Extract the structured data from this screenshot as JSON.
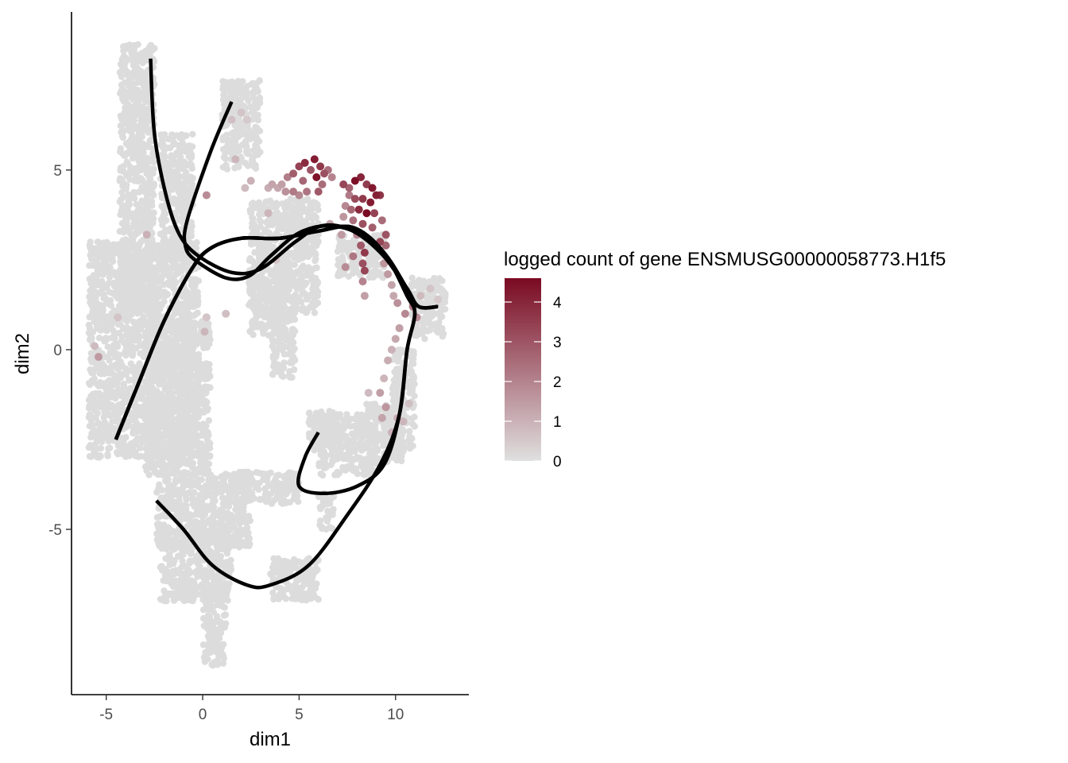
{
  "chart_data": {
    "type": "scatter",
    "xlabel": "dim1",
    "ylabel": "dim2",
    "xlim": [
      -6.8,
      13.8
    ],
    "ylim": [
      -9.6,
      9.4
    ],
    "x_ticks": [
      -5,
      0,
      5,
      10
    ],
    "y_ticks": [
      -5,
      0,
      5
    ],
    "x_tick_labels": [
      "-5",
      "0",
      "5",
      "10"
    ],
    "y_tick_labels": [
      "-5",
      "0",
      "5"
    ],
    "grid": false,
    "legend": {
      "title": "logged count of gene ENSMUSG00000058773.H1f5",
      "placement": "right",
      "type": "continuous",
      "range": [
        0,
        4.6
      ],
      "breaks": [
        0,
        1,
        2,
        3,
        4
      ],
      "break_labels": [
        "0",
        "1",
        "2",
        "3",
        "4"
      ],
      "low_color": "#e0e0e0",
      "high_color": "#7a0a22"
    },
    "colors": {
      "background_point": "#dcdcdc",
      "curve": "#000000",
      "axis": "#000000"
    },
    "background_regions": [
      {
        "xs": [
          -4.3,
          -2.5
        ],
        "ys": [
          1.0,
          8.5
        ]
      },
      {
        "xs": [
          -5.9,
          -0.2
        ],
        "ys": [
          -3.0,
          3.0
        ]
      },
      {
        "xs": [
          -3.0,
          0.4
        ],
        "ys": [
          -3.5,
          0.8
        ]
      },
      {
        "xs": [
          -2.2,
          -0.5
        ],
        "ys": [
          2.5,
          6.0
        ]
      },
      {
        "xs": [
          1.0,
          3.0
        ],
        "ys": [
          5.0,
          7.5
        ]
      },
      {
        "xs": [
          2.4,
          6.0
        ],
        "ys": [
          1.0,
          4.2
        ]
      },
      {
        "xs": [
          2.4,
          4.4
        ],
        "ys": [
          0.4,
          2.0
        ]
      },
      {
        "xs": [
          3.6,
          4.8
        ],
        "ys": [
          -0.8,
          1.2
        ]
      },
      {
        "xs": [
          7.0,
          9.5
        ],
        "ys": [
          2.0,
          3.2
        ]
      },
      {
        "xs": [
          10.8,
          12.6
        ],
        "ys": [
          0.3,
          2.0
        ]
      },
      {
        "xs": [
          9.8,
          11.0
        ],
        "ys": [
          -2.8,
          0.0
        ]
      },
      {
        "xs": [
          8.5,
          10.4
        ],
        "ys": [
          -3.2,
          -1.5
        ]
      },
      {
        "xs": [
          6.0,
          9.0
        ],
        "ys": [
          -3.5,
          -1.8
        ]
      },
      {
        "xs": [
          5.5,
          7.0
        ],
        "ys": [
          -2.8,
          -1.7
        ]
      },
      {
        "xs": [
          -2.4,
          2.5
        ],
        "ys": [
          -5.5,
          -3.4
        ]
      },
      {
        "xs": [
          1.5,
          5.0
        ],
        "ys": [
          -4.3,
          -3.4
        ]
      },
      {
        "xs": [
          -2.2,
          1.5
        ],
        "ys": [
          -7.0,
          -5.0
        ]
      },
      {
        "xs": [
          0.0,
          1.2
        ],
        "ys": [
          -8.8,
          -6.5
        ]
      },
      {
        "xs": [
          3.5,
          6.0
        ],
        "ys": [
          -7.0,
          -5.8
        ]
      },
      {
        "xs": [
          6.0,
          6.8
        ],
        "ys": [
          -5.0,
          -4.0
        ]
      }
    ],
    "colored_points": [
      {
        "x": 5.0,
        "y": 5.1,
        "value": 3.4
      },
      {
        "x": 5.3,
        "y": 5.2,
        "value": 3.9
      },
      {
        "x": 5.6,
        "y": 5.0,
        "value": 3.0
      },
      {
        "x": 5.8,
        "y": 5.3,
        "value": 4.2
      },
      {
        "x": 6.1,
        "y": 5.1,
        "value": 3.6
      },
      {
        "x": 4.7,
        "y": 4.9,
        "value": 2.8
      },
      {
        "x": 5.9,
        "y": 4.8,
        "value": 4.4
      },
      {
        "x": 6.3,
        "y": 4.9,
        "value": 3.1
      },
      {
        "x": 5.2,
        "y": 4.7,
        "value": 2.6
      },
      {
        "x": 6.5,
        "y": 5.0,
        "value": 2.4
      },
      {
        "x": 4.4,
        "y": 4.8,
        "value": 2.1
      },
      {
        "x": 4.1,
        "y": 4.6,
        "value": 1.4
      },
      {
        "x": 3.9,
        "y": 4.5,
        "value": 1.2
      },
      {
        "x": 4.3,
        "y": 4.4,
        "value": 1.7
      },
      {
        "x": 5.4,
        "y": 4.4,
        "value": 2.3
      },
      {
        "x": 6.0,
        "y": 4.4,
        "value": 2.9
      },
      {
        "x": 7.3,
        "y": 4.6,
        "value": 3.3
      },
      {
        "x": 7.6,
        "y": 4.5,
        "value": 2.7
      },
      {
        "x": 7.9,
        "y": 4.7,
        "value": 4.5
      },
      {
        "x": 8.2,
        "y": 4.8,
        "value": 4.0
      },
      {
        "x": 8.5,
        "y": 4.6,
        "value": 3.5
      },
      {
        "x": 8.8,
        "y": 4.5,
        "value": 4.3
      },
      {
        "x": 9.0,
        "y": 4.3,
        "value": 4.1
      },
      {
        "x": 9.2,
        "y": 4.3,
        "value": 3.7
      },
      {
        "x": 7.6,
        "y": 4.3,
        "value": 2.2
      },
      {
        "x": 7.9,
        "y": 4.2,
        "value": 3.2
      },
      {
        "x": 8.3,
        "y": 4.2,
        "value": 3.6
      },
      {
        "x": 8.7,
        "y": 4.1,
        "value": 4.2
      },
      {
        "x": 7.4,
        "y": 4.0,
        "value": 1.9
      },
      {
        "x": 7.7,
        "y": 3.9,
        "value": 2.6
      },
      {
        "x": 8.1,
        "y": 3.9,
        "value": 3.9
      },
      {
        "x": 8.5,
        "y": 3.8,
        "value": 4.6
      },
      {
        "x": 8.9,
        "y": 3.8,
        "value": 3.4
      },
      {
        "x": 7.3,
        "y": 3.7,
        "value": 1.6
      },
      {
        "x": 7.8,
        "y": 3.6,
        "value": 2.4
      },
      {
        "x": 8.3,
        "y": 3.5,
        "value": 3.1
      },
      {
        "x": 8.8,
        "y": 3.4,
        "value": 2.8
      },
      {
        "x": 9.3,
        "y": 3.6,
        "value": 2.5
      },
      {
        "x": 9.5,
        "y": 3.2,
        "value": 3.0
      },
      {
        "x": 9.2,
        "y": 3.0,
        "value": 3.3
      },
      {
        "x": 9.5,
        "y": 2.9,
        "value": 2.6
      },
      {
        "x": 8.0,
        "y": 3.2,
        "value": 2.0
      },
      {
        "x": 7.2,
        "y": 3.2,
        "value": 1.5
      },
      {
        "x": 6.6,
        "y": 3.5,
        "value": 1.3
      },
      {
        "x": 8.2,
        "y": 2.9,
        "value": 2.9
      },
      {
        "x": 8.4,
        "y": 2.7,
        "value": 3.6
      },
      {
        "x": 8.3,
        "y": 2.4,
        "value": 3.1
      },
      {
        "x": 8.4,
        "y": 2.2,
        "value": 3.3
      },
      {
        "x": 7.8,
        "y": 2.6,
        "value": 2.3
      },
      {
        "x": 7.4,
        "y": 2.3,
        "value": 1.8
      },
      {
        "x": 8.3,
        "y": 1.9,
        "value": 2.0
      },
      {
        "x": 8.4,
        "y": 1.5,
        "value": 1.4
      },
      {
        "x": 5.0,
        "y": 4.3,
        "value": 1.9
      },
      {
        "x": 4.7,
        "y": 4.4,
        "value": 2.2
      },
      {
        "x": 6.2,
        "y": 4.6,
        "value": 2.5
      },
      {
        "x": 6.7,
        "y": 4.8,
        "value": 2.0
      },
      {
        "x": 3.4,
        "y": 4.5,
        "value": 1.1
      },
      {
        "x": 3.6,
        "y": 4.6,
        "value": 1.3
      },
      {
        "x": 2.5,
        "y": 4.7,
        "value": 1.0
      },
      {
        "x": 2.2,
        "y": 4.5,
        "value": 0.8
      },
      {
        "x": 1.7,
        "y": 5.3,
        "value": 0.9
      },
      {
        "x": 1.5,
        "y": 6.4,
        "value": 0.7
      },
      {
        "x": 2.0,
        "y": 6.6,
        "value": 0.6
      },
      {
        "x": 2.3,
        "y": 6.4,
        "value": 0.5
      },
      {
        "x": 0.2,
        "y": 4.3,
        "value": 1.8
      },
      {
        "x": -2.9,
        "y": 3.2,
        "value": 1.0
      },
      {
        "x": -5.4,
        "y": -0.2,
        "value": 1.5
      },
      {
        "x": -5.6,
        "y": 0.1,
        "value": 0.8
      },
      {
        "x": -4.4,
        "y": 0.9,
        "value": 0.6
      },
      {
        "x": 0.1,
        "y": 0.5,
        "value": 0.9
      },
      {
        "x": 0.2,
        "y": 0.9,
        "value": 0.6
      },
      {
        "x": 1.2,
        "y": 1.0,
        "value": 0.7
      },
      {
        "x": 3.4,
        "y": 3.8,
        "value": 0.9
      },
      {
        "x": 3.8,
        "y": 2.5,
        "value": 0.6
      },
      {
        "x": 9.4,
        "y": 2.4,
        "value": 1.6
      },
      {
        "x": 9.6,
        "y": 2.1,
        "value": 1.5
      },
      {
        "x": 9.8,
        "y": 1.8,
        "value": 1.3
      },
      {
        "x": 9.9,
        "y": 1.5,
        "value": 1.2
      },
      {
        "x": 10.1,
        "y": 1.3,
        "value": 1.7
      },
      {
        "x": 10.5,
        "y": 1.0,
        "value": 1.9
      },
      {
        "x": 10.9,
        "y": 1.2,
        "value": 2.2
      },
      {
        "x": 11.1,
        "y": 0.9,
        "value": 1.8
      },
      {
        "x": 10.2,
        "y": 0.6,
        "value": 1.4
      },
      {
        "x": 10.0,
        "y": 0.3,
        "value": 1.2
      },
      {
        "x": 9.8,
        "y": 0.0,
        "value": 1.0
      },
      {
        "x": 9.6,
        "y": -0.3,
        "value": 1.1
      },
      {
        "x": 9.4,
        "y": -0.8,
        "value": 0.9
      },
      {
        "x": 9.2,
        "y": -1.2,
        "value": 1.4
      },
      {
        "x": 9.5,
        "y": -1.6,
        "value": 1.6
      },
      {
        "x": 9.3,
        "y": -1.9,
        "value": 1.3
      },
      {
        "x": 10.1,
        "y": -1.9,
        "value": 1.1
      },
      {
        "x": 10.4,
        "y": -2.0,
        "value": 0.9
      },
      {
        "x": 9.8,
        "y": -2.3,
        "value": 1.0
      },
      {
        "x": 8.6,
        "y": -1.2,
        "value": 0.8
      },
      {
        "x": 10.7,
        "y": -1.5,
        "value": 0.7
      },
      {
        "x": 11.3,
        "y": 1.5,
        "value": 0.8
      },
      {
        "x": 11.8,
        "y": 1.7,
        "value": 0.6
      },
      {
        "x": 12.2,
        "y": 1.4,
        "value": 0.5
      }
    ],
    "principal_curves": [
      [
        [
          -2.7,
          8.1
        ],
        [
          -2.5,
          6.0
        ],
        [
          -1.9,
          4.3
        ],
        [
          -1.2,
          3.2
        ],
        [
          -0.2,
          2.6
        ],
        [
          1.5,
          2.15
        ],
        [
          3.0,
          2.25
        ],
        [
          4.8,
          3.0
        ],
        [
          6.2,
          3.45
        ],
        [
          7.8,
          3.3
        ],
        [
          9.4,
          2.6
        ],
        [
          10.6,
          1.7
        ],
        [
          11.2,
          1.2
        ],
        [
          12.2,
          1.2
        ]
      ],
      [
        [
          1.5,
          6.9
        ],
        [
          0.4,
          5.5
        ],
        [
          -0.8,
          3.6
        ],
        [
          -0.9,
          2.9
        ],
        [
          -0.4,
          2.5
        ],
        [
          1.2,
          2.0
        ],
        [
          2.4,
          2.05
        ],
        [
          3.5,
          2.6
        ],
        [
          5.0,
          3.25
        ],
        [
          6.6,
          3.45
        ],
        [
          8.2,
          3.2
        ],
        [
          9.4,
          2.6
        ],
        [
          10.6,
          1.7
        ],
        [
          11.2,
          1.2
        ],
        [
          12.2,
          1.2
        ]
      ],
      [
        [
          -4.5,
          -2.5
        ],
        [
          -3.3,
          -0.9
        ],
        [
          -2.0,
          0.8
        ],
        [
          -0.5,
          2.3
        ],
        [
          0.5,
          2.85
        ],
        [
          2.0,
          3.1
        ],
        [
          4.0,
          3.1
        ],
        [
          6.0,
          3.3
        ],
        [
          7.8,
          3.4
        ],
        [
          9.4,
          2.7
        ],
        [
          10.6,
          1.7
        ],
        [
          11.2,
          1.2
        ],
        [
          12.2,
          1.2
        ]
      ],
      [
        [
          -4.5,
          -2.5
        ],
        [
          -3.3,
          -0.9
        ],
        [
          -2.0,
          0.8
        ],
        [
          -0.5,
          2.3
        ],
        [
          0.5,
          2.85
        ],
        [
          2.0,
          3.1
        ],
        [
          4.0,
          3.1
        ],
        [
          6.0,
          3.3
        ],
        [
          7.8,
          3.4
        ],
        [
          9.4,
          2.7
        ],
        [
          10.6,
          1.5
        ],
        [
          11.0,
          1.0
        ],
        [
          10.6,
          0.0
        ],
        [
          10.2,
          -1.8
        ],
        [
          9.4,
          -3.2
        ],
        [
          8.0,
          -3.8
        ],
        [
          6.3,
          -4.0
        ],
        [
          5.0,
          -3.8
        ],
        [
          5.3,
          -3.0
        ],
        [
          6.0,
          -2.3
        ]
      ],
      [
        [
          -4.5,
          -2.5
        ],
        [
          -3.3,
          -0.9
        ],
        [
          -2.0,
          0.8
        ],
        [
          -0.5,
          2.3
        ],
        [
          0.5,
          2.85
        ],
        [
          2.0,
          3.1
        ],
        [
          4.0,
          3.1
        ],
        [
          6.0,
          3.3
        ],
        [
          7.8,
          3.4
        ],
        [
          9.4,
          2.7
        ],
        [
          10.6,
          1.5
        ],
        [
          11.0,
          1.0
        ],
        [
          10.6,
          0.0
        ],
        [
          10.2,
          -1.8
        ],
        [
          9.2,
          -3.2
        ],
        [
          7.5,
          -4.6
        ],
        [
          5.5,
          -6.0
        ],
        [
          3.5,
          -6.55
        ],
        [
          2.3,
          -6.55
        ],
        [
          0.5,
          -6.0
        ],
        [
          -1.0,
          -5.0
        ],
        [
          -2.4,
          -4.2
        ]
      ]
    ]
  }
}
